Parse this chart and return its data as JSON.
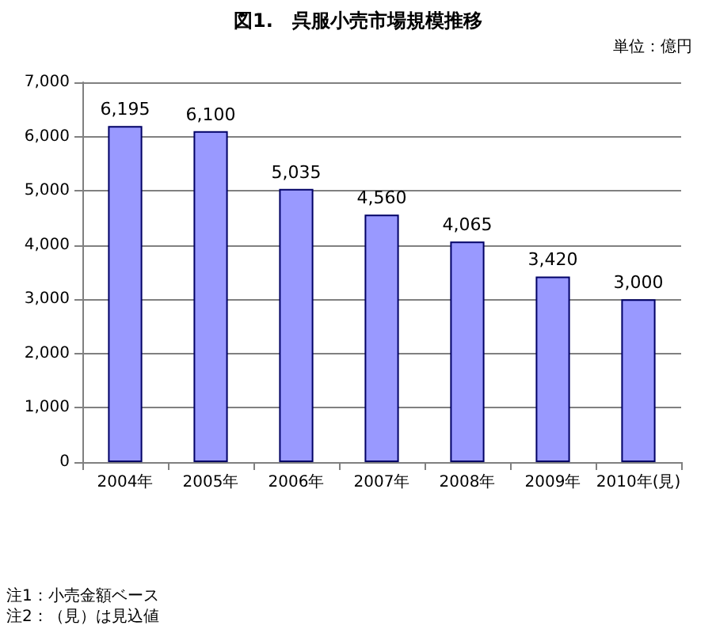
{
  "chart_data": {
    "type": "bar",
    "title": "図1.　呉服小売市場規模推移",
    "subtitle": "単位：億円",
    "categories": [
      "2004年",
      "2005年",
      "2006年",
      "2007年",
      "2008年",
      "2009年",
      "2010年(見)"
    ],
    "values": [
      6195,
      6100,
      5035,
      4560,
      4065,
      3420,
      3000
    ],
    "color": "#9999ff",
    "ylim": [
      0,
      7000
    ],
    "yticks": [
      {
        "value": 0,
        "label": "0"
      },
      {
        "value": 1000,
        "label": "1,000"
      },
      {
        "value": 2000,
        "label": "2,000"
      },
      {
        "value": 3000,
        "label": "3,000"
      },
      {
        "value": 4000,
        "label": "4,000"
      },
      {
        "value": 5000,
        "label": "5,000"
      },
      {
        "value": 6000,
        "label": "6,000"
      },
      {
        "value": 7000,
        "label": "7,000"
      }
    ],
    "grid": "y",
    "value_labels": [
      "6,195",
      "6,100",
      "5,035",
      "4,560",
      "4,065",
      "3,420",
      "3,000"
    ],
    "annotations": [
      "注1：小売金額ベース",
      "注2：（見）は見込値"
    ]
  }
}
